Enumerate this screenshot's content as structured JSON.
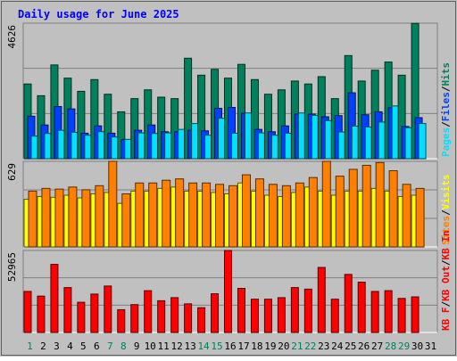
{
  "title": "Daily usage for June 2025",
  "colors": {
    "background": "#c0c0c0",
    "frame": "#a0a0a0",
    "title": "#0000ff",
    "hits": "#00805c",
    "files": "#0040ff",
    "pages": "#00e0ff",
    "visits": "#ffff00",
    "sites": "#ff8000",
    "kbin": "#ff0000",
    "kbout": "#ff0000",
    "weekday_label": "#000000",
    "weekend_label": "#00805c"
  },
  "chart_data": [
    {
      "type": "bar",
      "categories": [
        "1",
        "2",
        "3",
        "4",
        "5",
        "6",
        "7",
        "8",
        "9",
        "10",
        "11",
        "12",
        "13",
        "14",
        "15",
        "16",
        "17",
        "18",
        "19",
        "20",
        "21",
        "22",
        "23",
        "24",
        "25",
        "26",
        "27",
        "28",
        "29",
        "30",
        "31"
      ],
      "weekend_days": [
        "1",
        "7",
        "8",
        "14",
        "15",
        "21",
        "22",
        "28",
        "29"
      ],
      "ymax_label": "4626",
      "ylim": [
        0,
        4626
      ],
      "legend": [
        {
          "key": "hits",
          "label": "Hits"
        },
        {
          "key": "sep1",
          "label": "/"
        },
        {
          "key": "files",
          "label": "Files"
        },
        {
          "key": "sep2",
          "label": "/"
        },
        {
          "key": "pages",
          "label": "Pages"
        }
      ],
      "series": [
        {
          "name": "Hits",
          "color_key": "hits",
          "values": [
            2550,
            2150,
            3200,
            2750,
            2300,
            2700,
            2200,
            1600,
            2050,
            2350,
            2100,
            2050,
            3430,
            2850,
            3050,
            2750,
            3220,
            2700,
            2200,
            2350,
            2650,
            2550,
            2800,
            2050,
            3520,
            2650,
            3020,
            3300,
            2850,
            4620,
            0
          ]
        },
        {
          "name": "Files",
          "color_key": "files",
          "values": [
            1450,
            1150,
            1780,
            1700,
            870,
            1120,
            870,
            650,
            970,
            1150,
            920,
            920,
            970,
            950,
            1720,
            1750,
            1550,
            1000,
            920,
            1120,
            1530,
            1520,
            1430,
            1470,
            2250,
            1500,
            1600,
            1740,
            1100,
            1400,
            0
          ]
        },
        {
          "name": "Pages",
          "color_key": "pages",
          "values": [
            770,
            860,
            970,
            900,
            800,
            920,
            740,
            660,
            880,
            860,
            880,
            1000,
            1200,
            800,
            1380,
            870,
            1560,
            880,
            800,
            870,
            1560,
            1480,
            1300,
            910,
            1110,
            1080,
            1250,
            1800,
            1060,
            1200,
            0
          ]
        }
      ]
    },
    {
      "type": "bar",
      "categories": [
        "1",
        "2",
        "3",
        "4",
        "5",
        "6",
        "7",
        "8",
        "9",
        "10",
        "11",
        "12",
        "13",
        "14",
        "15",
        "16",
        "17",
        "18",
        "19",
        "20",
        "21",
        "22",
        "23",
        "24",
        "25",
        "26",
        "27",
        "28",
        "29",
        "30",
        "31"
      ],
      "ymax_label": "629",
      "ylim": [
        0,
        629
      ],
      "legend": [
        {
          "key": "visits",
          "label": "Visits"
        },
        {
          "key": "sep1",
          "label": "/"
        },
        {
          "key": "sites",
          "label": "Sites"
        }
      ],
      "series": [
        {
          "name": "Visits",
          "color_key": "visits",
          "values": [
            350,
            370,
            365,
            380,
            360,
            390,
            400,
            320,
            410,
            410,
            430,
            440,
            410,
            410,
            400,
            390,
            470,
            410,
            380,
            370,
            400,
            440,
            410,
            380,
            410,
            410,
            430,
            410,
            370,
            380,
            0
          ]
        },
        {
          "name": "Sites",
          "color_key": "sites",
          "values": [
            410,
            430,
            425,
            440,
            420,
            450,
            630,
            390,
            470,
            470,
            490,
            500,
            470,
            470,
            460,
            450,
            530,
            500,
            460,
            450,
            470,
            510,
            630,
            520,
            570,
            600,
            620,
            560,
            460,
            430,
            0
          ]
        }
      ]
    },
    {
      "type": "bar",
      "categories": [
        "1",
        "2",
        "3",
        "4",
        "5",
        "6",
        "7",
        "8",
        "9",
        "10",
        "11",
        "12",
        "13",
        "14",
        "15",
        "16",
        "17",
        "18",
        "19",
        "20",
        "21",
        "22",
        "23",
        "24",
        "25",
        "26",
        "27",
        "28",
        "29",
        "30",
        "31"
      ],
      "ymax_label": "52965",
      "ylim": [
        0,
        52965
      ],
      "legend": [
        {
          "key": "kbin",
          "label": "KB In"
        },
        {
          "key": "sep1",
          "label": "/"
        },
        {
          "key": "kbout",
          "label": "KB Out"
        },
        {
          "key": "sep2",
          "label": "/"
        },
        {
          "key": "kbf",
          "label": "KB F"
        }
      ],
      "series": [
        {
          "name": "KB In",
          "color_key": "kbin",
          "values": [
            26500,
            23500,
            44000,
            29000,
            19500,
            24800,
            30000,
            14700,
            18000,
            27000,
            20500,
            22500,
            18500,
            16000,
            25000,
            53000,
            28500,
            21500,
            21500,
            22500,
            29000,
            28000,
            42000,
            21500,
            37500,
            32500,
            26500,
            27000,
            22000,
            23000,
            0
          ]
        }
      ]
    }
  ]
}
